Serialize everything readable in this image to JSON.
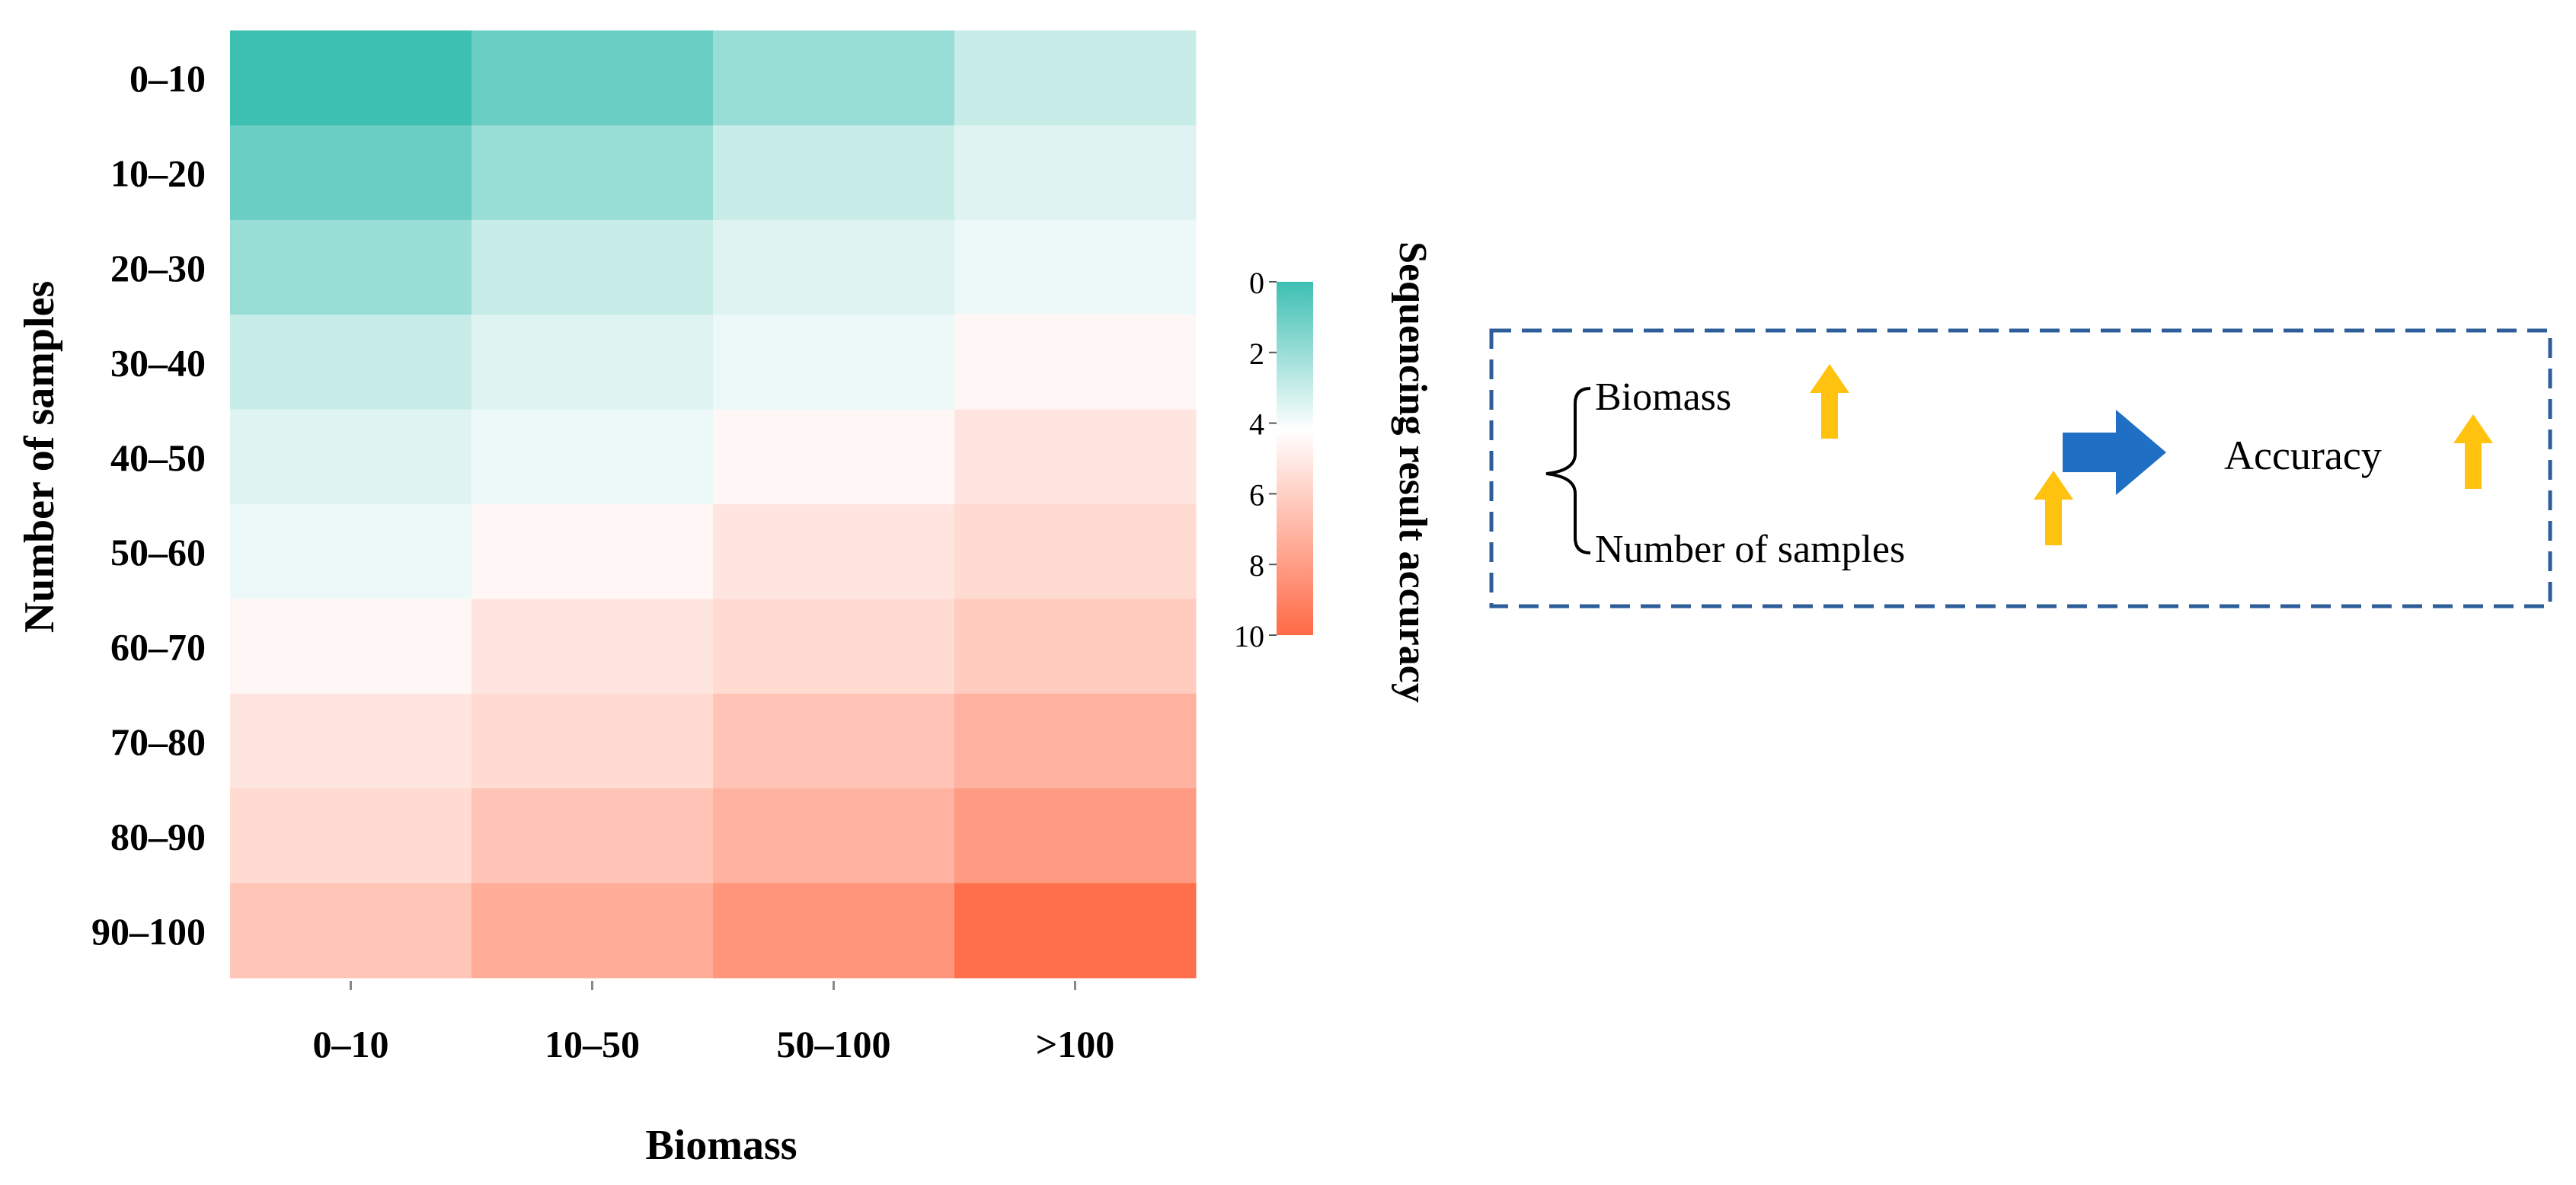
{
  "chart_data": {
    "type": "heatmap",
    "title": "",
    "xlabel": "Biomass",
    "ylabel": "Number of samples",
    "x_categories": [
      "0–10",
      "10–50",
      "50–100",
      ">100"
    ],
    "y_categories": [
      "0–10",
      "10–20",
      "20–30",
      "30–40",
      "40–50",
      "50–60",
      "60–70",
      "70–80",
      "80–90",
      "90–100"
    ],
    "values": [
      [
        0,
        1,
        2,
        3
      ],
      [
        1,
        2,
        3,
        3.5
      ],
      [
        2,
        3,
        3.5,
        3.8
      ],
      [
        3,
        3.5,
        3.8,
        4.5
      ],
      [
        3.5,
        3.8,
        4.5,
        5.2
      ],
      [
        3.8,
        4.5,
        5.2,
        5.6
      ],
      [
        4.5,
        5.2,
        5.6,
        6.2
      ],
      [
        5.2,
        5.6,
        6.5,
        7.2
      ],
      [
        5.6,
        6.5,
        7.2,
        8.1
      ],
      [
        6.4,
        7.4,
        8.3,
        9.8
      ]
    ],
    "colorbar": {
      "label": "Sequencing result accuracy",
      "min": 0,
      "max": 10,
      "ticks": [
        "0",
        "2",
        "4",
        "6",
        "8",
        "10"
      ],
      "low_color": "#3dbfb2",
      "mid_color": "#ffffff",
      "high_color": "#ff6a45"
    }
  },
  "diagram": {
    "item1": "Biomass",
    "item2": "Number of samples",
    "result": "Accuracy",
    "up_arrow_color": "#ffc20e",
    "right_arrow_color": "#1f6fc5",
    "border_color": "#2d5e9a"
  }
}
